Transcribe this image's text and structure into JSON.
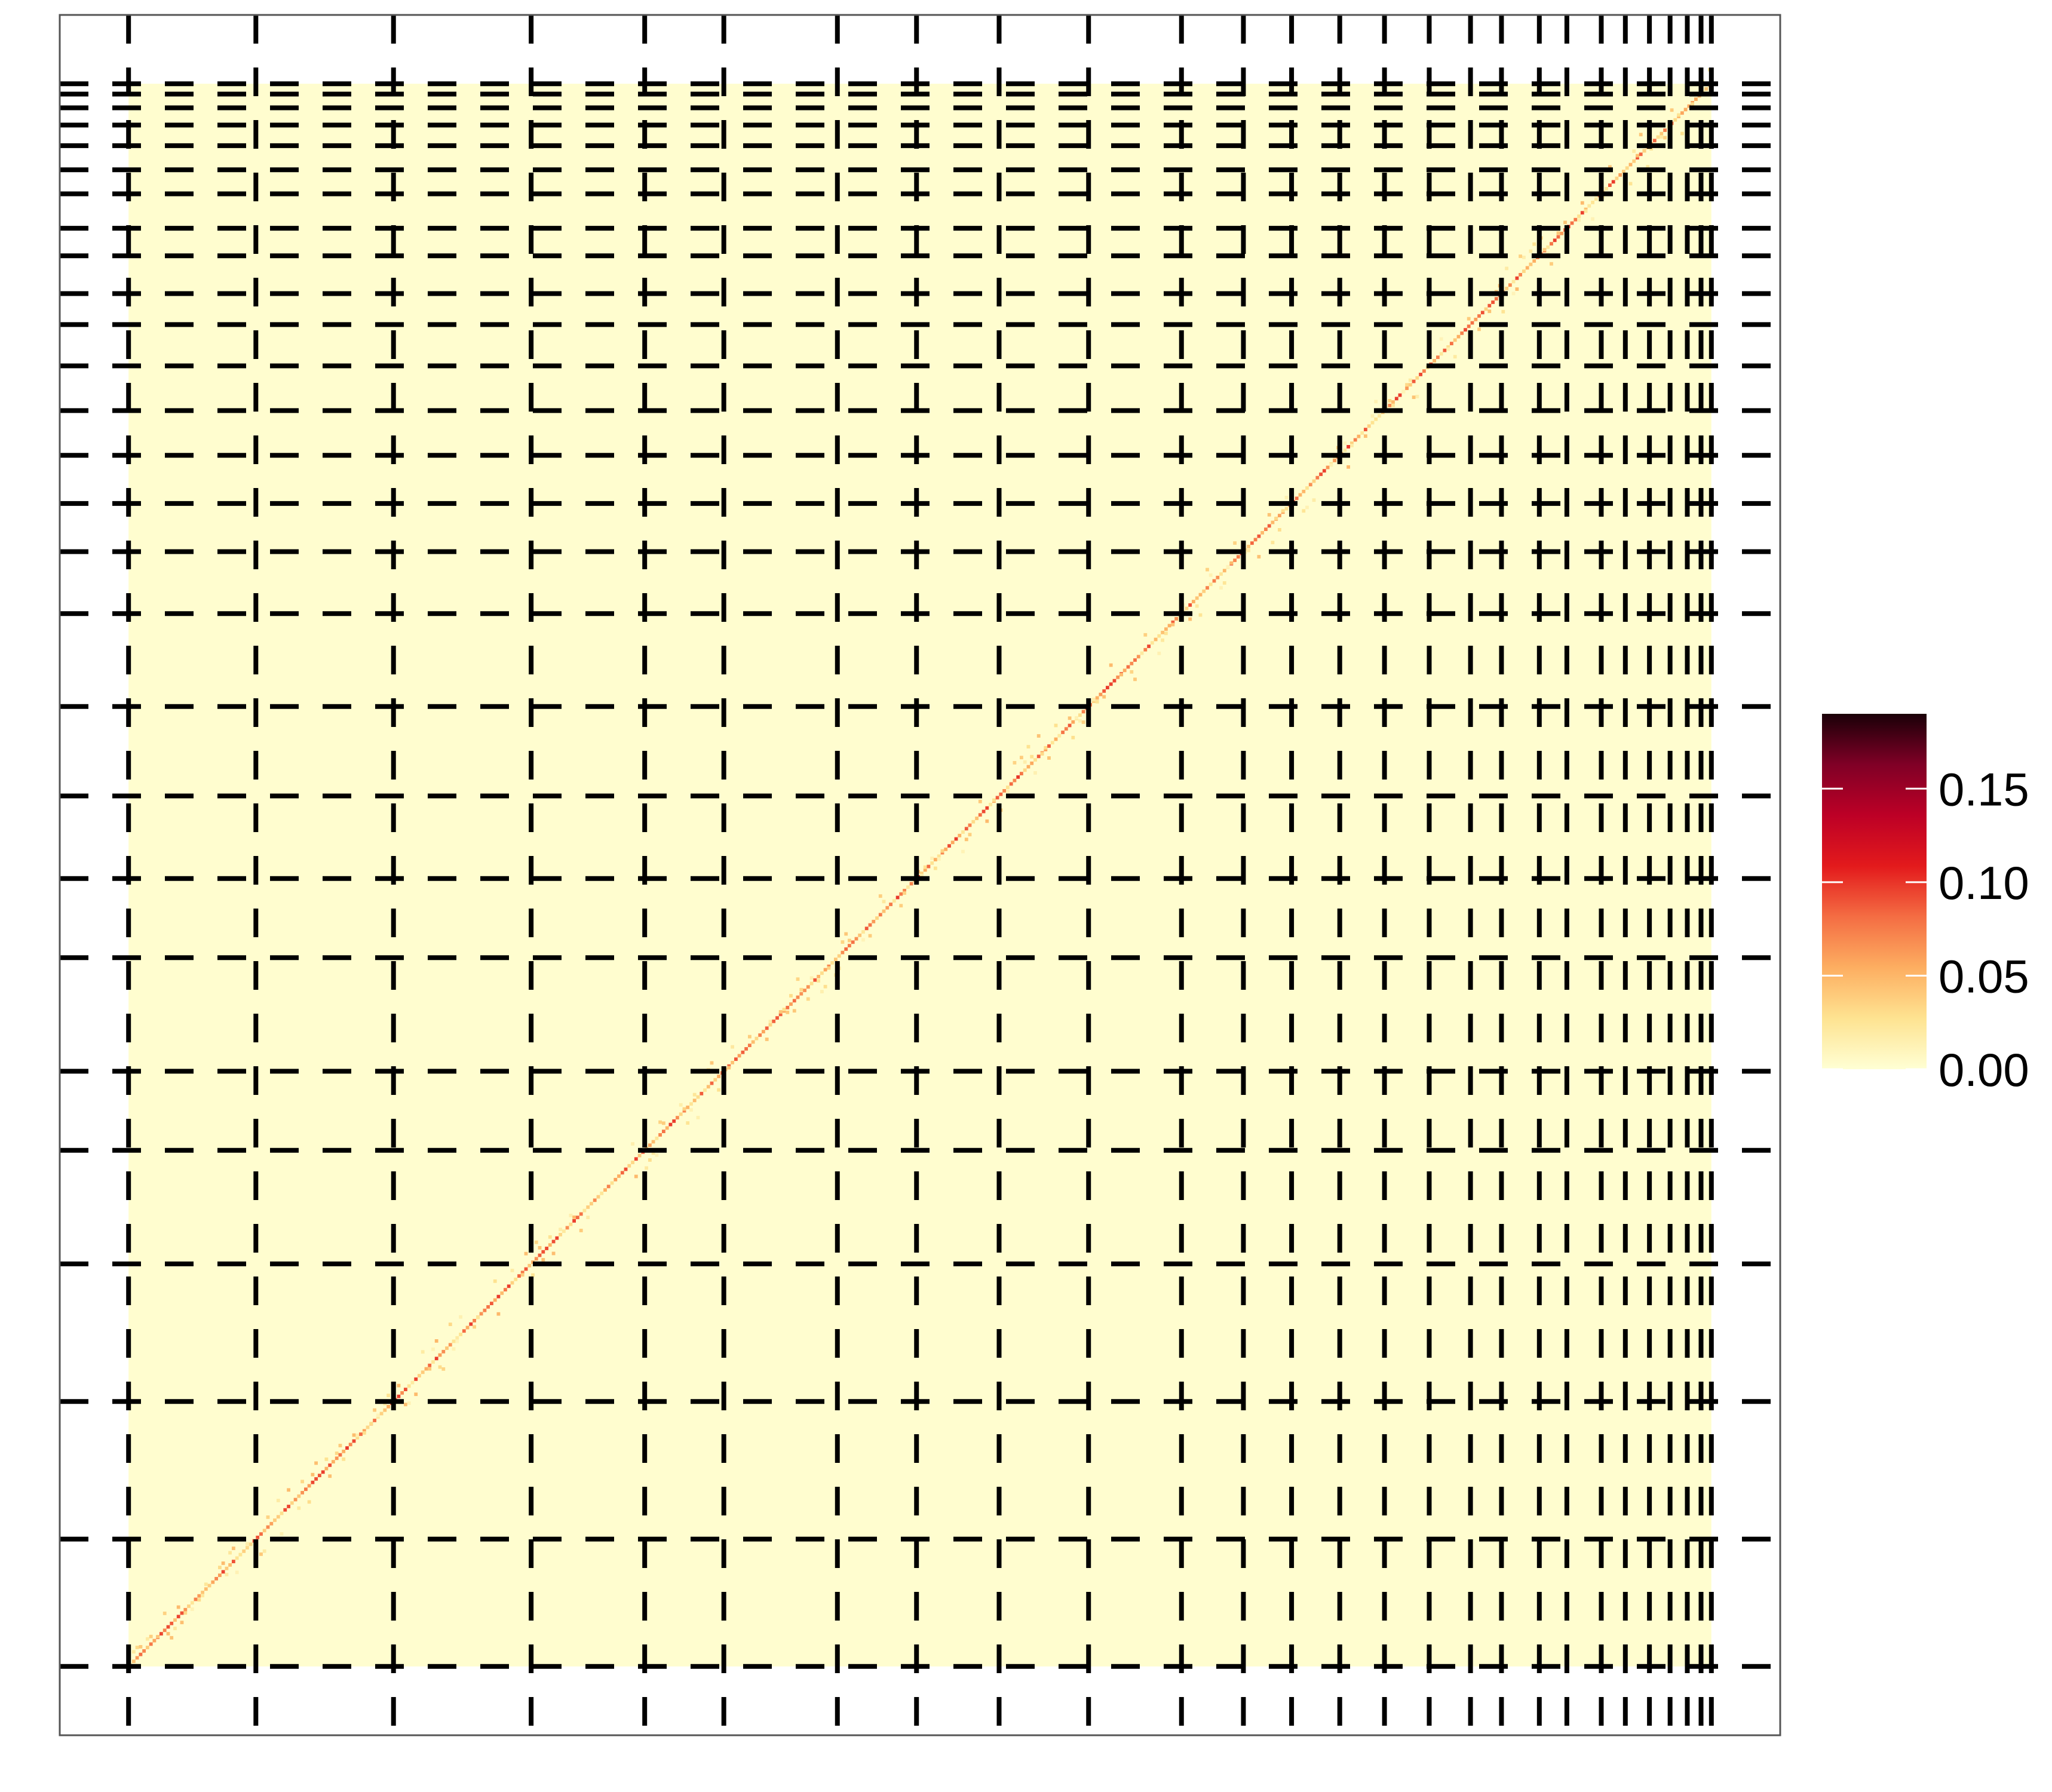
{
  "chart_data": {
    "type": "heatmap",
    "title": "",
    "xlabel": "",
    "ylabel": "",
    "xlim": [
      0,
      25
    ],
    "ylim": [
      0,
      25
    ],
    "matrix_extent": [
      1,
      24
    ],
    "block_boundaries": [
      1,
      2.85,
      4.85,
      6.85,
      8.5,
      9.65,
      11.3,
      12.45,
      13.65,
      14.95,
      16.3,
      17.2,
      17.9,
      18.6,
      19.25,
      19.9,
      20.5,
      20.95,
      21.5,
      21.9,
      22.4,
      22.75,
      23.1,
      23.4,
      23.65,
      23.85,
      24
    ],
    "diagonal_mean_value": 0.05,
    "background_value": 0.002,
    "grid": false,
    "legend_placement": "right",
    "colorbar": {
      "min": 0.0,
      "max": 0.19,
      "ticks": [
        0.15,
        0.1,
        0.05,
        0.0
      ],
      "tick_labels": [
        "0.15",
        "0.10",
        "0.05",
        "0.00"
      ],
      "colors": [
        "#ffffd4",
        "#fee391",
        "#fdae61",
        "#f46d43",
        "#e31a1c",
        "#bd0026",
        "#800026",
        "#1a0008"
      ]
    },
    "line_style": "dashed",
    "line_color": "#000000",
    "panel_border_color": "#555555"
  }
}
